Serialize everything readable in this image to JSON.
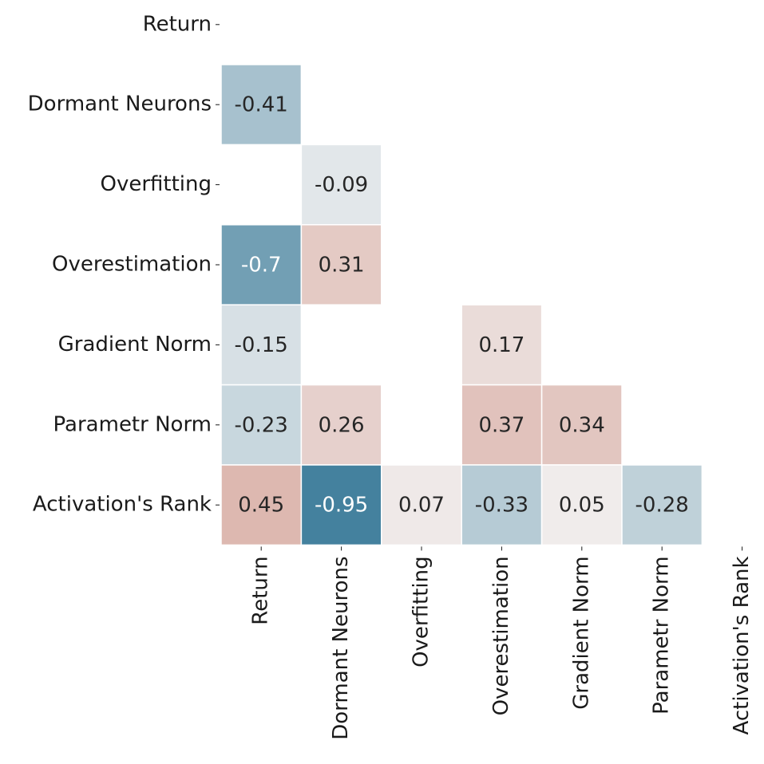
{
  "chart_data": {
    "type": "heatmap",
    "variables": [
      "Return",
      "Dormant Neurons",
      "Overfitting",
      "Overestimation",
      "Gradient Norm",
      "Parametr Norm",
      "Activation's Rank"
    ],
    "cells": [
      {
        "row": 1,
        "col": 0,
        "value": -0.41,
        "label": "-0.41"
      },
      {
        "row": 2,
        "col": 1,
        "value": -0.09,
        "label": "-0.09"
      },
      {
        "row": 3,
        "col": 0,
        "value": -0.7,
        "label": "-0.7"
      },
      {
        "row": 3,
        "col": 1,
        "value": 0.31,
        "label": "0.31"
      },
      {
        "row": 4,
        "col": 0,
        "value": -0.15,
        "label": "-0.15"
      },
      {
        "row": 4,
        "col": 3,
        "value": 0.17,
        "label": "0.17"
      },
      {
        "row": 5,
        "col": 0,
        "value": -0.23,
        "label": "-0.23"
      },
      {
        "row": 5,
        "col": 1,
        "value": 0.26,
        "label": "0.26"
      },
      {
        "row": 5,
        "col": 3,
        "value": 0.37,
        "label": "0.37"
      },
      {
        "row": 5,
        "col": 4,
        "value": 0.34,
        "label": "0.34"
      },
      {
        "row": 6,
        "col": 0,
        "value": 0.45,
        "label": "0.45"
      },
      {
        "row": 6,
        "col": 1,
        "value": -0.95,
        "label": "-0.95"
      },
      {
        "row": 6,
        "col": 2,
        "value": 0.07,
        "label": "0.07"
      },
      {
        "row": 6,
        "col": 3,
        "value": -0.33,
        "label": "-0.33"
      },
      {
        "row": 6,
        "col": 4,
        "value": 0.05,
        "label": "0.05"
      },
      {
        "row": 6,
        "col": 5,
        "value": -0.28,
        "label": "-0.28"
      }
    ],
    "mask": "upper-triangle-and-diagonal",
    "hidden_near_zero": true,
    "value_range": [
      -1,
      1
    ],
    "colors": {
      "negative": "#3b7b9a",
      "neutral": "#f2f2f2",
      "positive": "#c4705f",
      "cell_border": "#ffffff",
      "text_dark": "#262626",
      "text_light": "#ffffff"
    }
  }
}
